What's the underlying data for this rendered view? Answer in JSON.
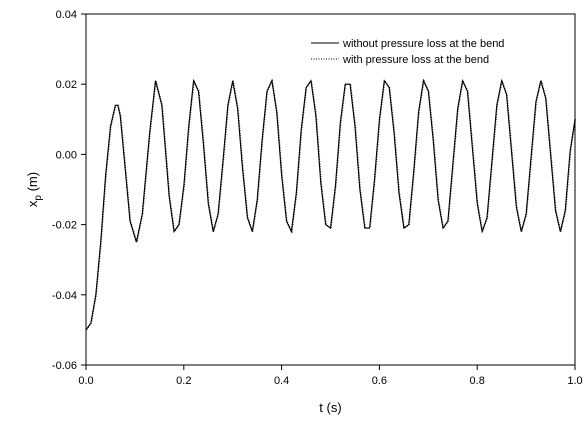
{
  "chart_data": {
    "type": "line",
    "title": "",
    "xlabel": "t (s)",
    "ylabel": {
      "base": "x",
      "sub": "p",
      "rest": " (m)"
    },
    "xlim": [
      0.0,
      1.0
    ],
    "ylim": [
      -0.06,
      0.04
    ],
    "xticks": [
      "0.0",
      "0.2",
      "0.4",
      "0.6",
      "0.8",
      "1.0"
    ],
    "yticks": [
      "-0.06",
      "-0.04",
      "-0.02",
      "0.00",
      "0.02",
      "0.04"
    ],
    "grid": false,
    "legend": "top-right",
    "series": [
      {
        "name": "without pressure loss at the bend",
        "style": "solid",
        "color": "#000000",
        "x": [
          0.0,
          0.01,
          0.02,
          0.03,
          0.04,
          0.05,
          0.06,
          0.065,
          0.07,
          0.08,
          0.09,
          0.103,
          0.115,
          0.13,
          0.142,
          0.155,
          0.17,
          0.18,
          0.19,
          0.2,
          0.21,
          0.22,
          0.23,
          0.24,
          0.25,
          0.26,
          0.27,
          0.28,
          0.29,
          0.3,
          0.31,
          0.32,
          0.33,
          0.34,
          0.35,
          0.36,
          0.37,
          0.38,
          0.39,
          0.4,
          0.41,
          0.42,
          0.43,
          0.44,
          0.45,
          0.46,
          0.47,
          0.48,
          0.49,
          0.5,
          0.51,
          0.52,
          0.53,
          0.54,
          0.55,
          0.56,
          0.57,
          0.58,
          0.59,
          0.6,
          0.61,
          0.62,
          0.63,
          0.64,
          0.65,
          0.66,
          0.67,
          0.68,
          0.69,
          0.7,
          0.71,
          0.72,
          0.73,
          0.74,
          0.75,
          0.76,
          0.77,
          0.78,
          0.79,
          0.8,
          0.81,
          0.82,
          0.83,
          0.84,
          0.85,
          0.86,
          0.87,
          0.88,
          0.89,
          0.9,
          0.91,
          0.92,
          0.93,
          0.94,
          0.95,
          0.96,
          0.97,
          0.98,
          0.99,
          1.0
        ],
        "y": [
          -0.05,
          -0.048,
          -0.04,
          -0.025,
          -0.006,
          0.008,
          0.014,
          0.014,
          0.011,
          -0.004,
          -0.019,
          -0.025,
          -0.017,
          0.006,
          0.021,
          0.014,
          -0.012,
          -0.022,
          -0.02,
          -0.009,
          0.008,
          0.021,
          0.018,
          0.003,
          -0.014,
          -0.022,
          -0.017,
          -0.002,
          0.014,
          0.021,
          0.013,
          -0.004,
          -0.018,
          -0.022,
          -0.013,
          0.004,
          0.018,
          0.021,
          0.012,
          -0.006,
          -0.019,
          -0.022,
          -0.011,
          0.007,
          0.019,
          0.021,
          0.011,
          -0.008,
          -0.02,
          -0.021,
          -0.009,
          0.009,
          0.02,
          0.02,
          0.008,
          -0.01,
          -0.021,
          -0.021,
          -0.007,
          0.01,
          0.021,
          0.019,
          0.006,
          -0.011,
          -0.021,
          -0.02,
          -0.005,
          0.012,
          0.021,
          0.018,
          0.004,
          -0.013,
          -0.021,
          -0.019,
          -0.003,
          0.013,
          0.021,
          0.018,
          0.002,
          -0.014,
          -0.022,
          -0.018,
          -0.002,
          0.014,
          0.021,
          0.017,
          0.001,
          -0.015,
          -0.022,
          -0.017,
          -0.001,
          0.015,
          0.021,
          0.016,
          0.0,
          -0.016,
          -0.022,
          -0.016,
          0.001,
          0.01
        ]
      },
      {
        "name": "with pressure loss at the bend",
        "style": "dotted",
        "color": "#000000",
        "x": [
          0.0,
          0.01,
          0.02,
          0.03,
          0.04,
          0.05,
          0.06,
          0.065,
          0.07,
          0.08,
          0.09,
          0.103,
          0.115,
          0.13,
          0.142,
          0.155,
          0.17,
          0.18,
          0.19,
          0.2,
          0.21,
          0.22,
          0.23,
          0.24,
          0.25,
          0.26,
          0.27,
          0.28,
          0.29,
          0.3,
          0.31,
          0.32,
          0.33,
          0.34,
          0.35,
          0.36,
          0.37,
          0.38,
          0.39,
          0.4,
          0.41,
          0.42,
          0.43,
          0.44,
          0.45,
          0.46,
          0.47,
          0.48,
          0.49,
          0.5,
          0.51,
          0.52,
          0.53,
          0.54,
          0.55,
          0.56,
          0.57,
          0.58,
          0.59,
          0.6,
          0.61,
          0.62,
          0.63,
          0.64,
          0.65,
          0.66,
          0.67,
          0.68,
          0.69,
          0.7,
          0.71,
          0.72,
          0.73,
          0.74,
          0.75,
          0.76,
          0.77,
          0.78,
          0.79,
          0.8,
          0.81,
          0.82,
          0.83,
          0.84,
          0.85,
          0.86,
          0.87,
          0.88,
          0.89,
          0.9,
          0.91,
          0.92,
          0.93,
          0.94,
          0.95,
          0.96,
          0.97,
          0.98,
          0.99,
          1.0
        ],
        "y": [
          -0.05,
          -0.048,
          -0.04,
          -0.025,
          -0.006,
          0.008,
          0.014,
          0.014,
          0.011,
          -0.004,
          -0.019,
          -0.025,
          -0.017,
          0.006,
          0.021,
          0.014,
          -0.012,
          -0.022,
          -0.02,
          -0.009,
          0.008,
          0.021,
          0.018,
          0.003,
          -0.014,
          -0.022,
          -0.017,
          -0.002,
          0.014,
          0.021,
          0.013,
          -0.004,
          -0.018,
          -0.022,
          -0.013,
          0.004,
          0.018,
          0.021,
          0.012,
          -0.006,
          -0.019,
          -0.022,
          -0.011,
          0.007,
          0.019,
          0.021,
          0.011,
          -0.008,
          -0.02,
          -0.021,
          -0.009,
          0.009,
          0.02,
          0.02,
          0.008,
          -0.01,
          -0.021,
          -0.021,
          -0.007,
          0.01,
          0.021,
          0.019,
          0.006,
          -0.011,
          -0.021,
          -0.02,
          -0.005,
          0.012,
          0.021,
          0.018,
          0.004,
          -0.013,
          -0.021,
          -0.019,
          -0.003,
          0.013,
          0.021,
          0.018,
          0.002,
          -0.014,
          -0.022,
          -0.018,
          -0.002,
          0.014,
          0.021,
          0.017,
          0.001,
          -0.015,
          -0.022,
          -0.017,
          -0.001,
          0.015,
          0.021,
          0.016,
          0.0,
          -0.016,
          -0.022,
          -0.016,
          0.001,
          0.01
        ]
      }
    ]
  }
}
